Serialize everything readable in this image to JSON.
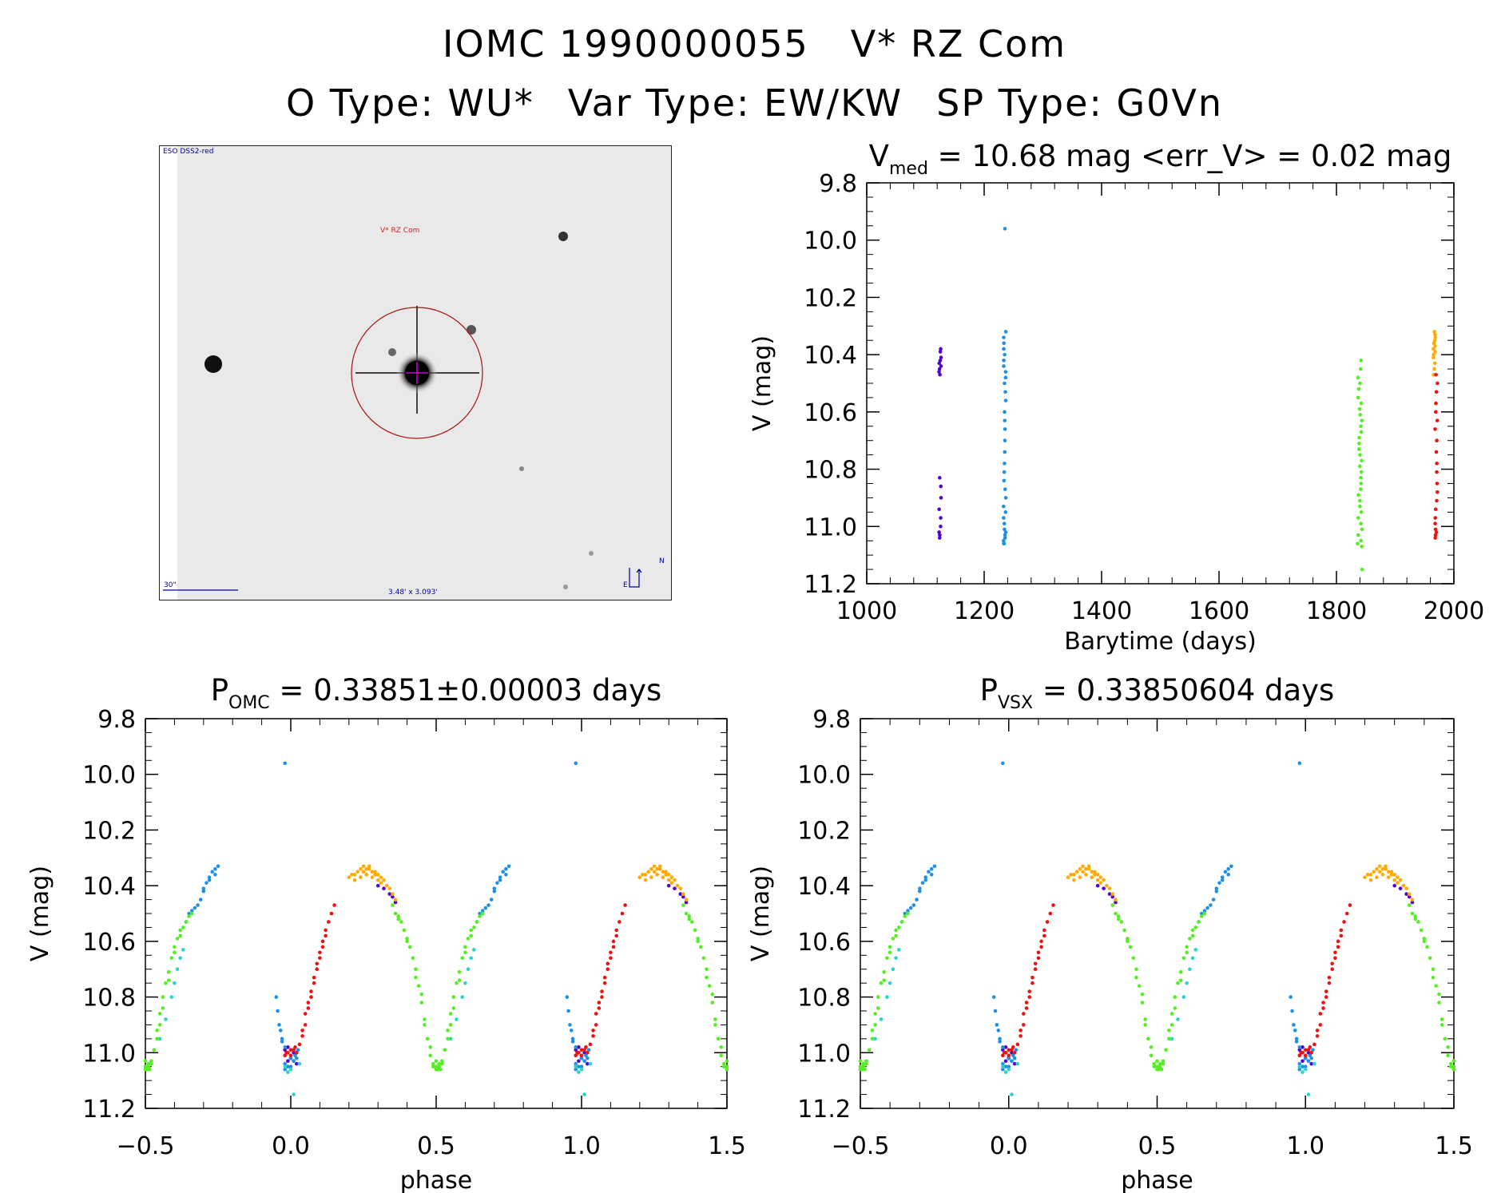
{
  "header": {
    "line1": {
      "id": "IOMC 1990000055",
      "name": "V* RZ Com"
    },
    "line2": {
      "otype": "O Type: WU*",
      "vartype": "Var Type: EW/KW",
      "sptype": "SP Type: G0Vn"
    }
  },
  "image": {
    "survey": "ESO DSS2-red",
    "target": "V* RZ Com",
    "scale": "30\"",
    "fov": "3.48' x 3.093'",
    "north": "N",
    "east": "E"
  },
  "chart_data": [
    {
      "type": "scatter",
      "title_main": "V",
      "title_sub": "med",
      "title_rest": " = 10.68 mag <err_V> = 0.02 mag",
      "xlabel": "Barytime (days)",
      "ylabel": "V (mag)",
      "xlim": [
        1000,
        2000
      ],
      "ylim": [
        9.8,
        11.2
      ],
      "y_reversed": true,
      "xticks": [
        "1000",
        "1200",
        "1400",
        "1600",
        "1800",
        "2000"
      ],
      "yticks": [
        "9.8",
        "10.0",
        "10.2",
        "10.4",
        "10.6",
        "10.8",
        "11.0",
        "11.2"
      ],
      "series": [
        {
          "color": "#5500cc",
          "x_center": 1125,
          "x_spread": 2,
          "y": [
            10.38,
            10.39,
            10.41,
            10.42,
            10.43,
            10.44,
            10.45,
            10.46,
            10.47,
            10.83,
            10.86,
            10.9,
            10.94,
            10.97,
            11.0,
            11.02,
            11.03,
            11.04
          ]
        },
        {
          "color": "#1e90e6",
          "x_center": 1235,
          "x_spread": 2,
          "y": [
            9.96,
            10.32,
            10.34,
            10.36,
            10.38,
            10.4,
            10.42,
            10.44,
            10.46,
            10.48,
            10.5,
            10.53,
            10.56,
            10.6,
            10.63,
            10.66,
            10.7,
            10.74,
            10.78,
            10.81,
            10.84,
            10.87,
            10.9,
            10.93,
            10.95,
            10.97,
            10.99,
            11.01,
            11.02,
            11.03,
            11.04,
            11.05,
            11.06,
            11.06
          ]
        },
        {
          "color": "#55ee22",
          "x_center": 1840,
          "x_spread": 4,
          "y": [
            10.42,
            10.45,
            10.48,
            10.5,
            10.52,
            10.55,
            10.57,
            10.59,
            10.61,
            10.63,
            10.65,
            10.67,
            10.69,
            10.71,
            10.73,
            10.75,
            10.77,
            10.79,
            10.81,
            10.83,
            10.85,
            10.87,
            10.89,
            10.91,
            10.93,
            10.95,
            10.97,
            10.99,
            11.01,
            11.03,
            11.05,
            11.06,
            11.07,
            11.15
          ]
        },
        {
          "color": "#ffaa00",
          "x_center": 1967,
          "x_spread": 2,
          "y": [
            10.32,
            10.33,
            10.34,
            10.35,
            10.36,
            10.37,
            10.38,
            10.39,
            10.4,
            10.41,
            10.43,
            10.45,
            10.47
          ]
        },
        {
          "color": "#ee1111",
          "x_center": 1970,
          "x_spread": 2,
          "y": [
            10.47,
            10.5,
            10.53,
            10.57,
            10.6,
            10.63,
            10.66,
            10.7,
            10.74,
            10.78,
            10.81,
            10.85,
            10.88,
            10.91,
            10.94,
            10.97,
            10.99,
            11.01,
            11.02,
            11.03,
            11.04
          ]
        }
      ]
    },
    {
      "type": "scatter",
      "title_main": "P",
      "title_sub": "OMC",
      "title_rest": " = 0.33851±0.00003 days",
      "xlabel": "phase",
      "ylabel": "V (mag)",
      "xlim": [
        -0.5,
        1.5
      ],
      "ylim": [
        9.8,
        11.2
      ],
      "y_reversed": true,
      "xticks": [
        "−0.5",
        "0.0",
        "0.5",
        "1.0",
        "1.5"
      ],
      "yticks": [
        "9.8",
        "10.0",
        "10.2",
        "10.4",
        "10.6",
        "10.8",
        "11.0",
        "11.2"
      ],
      "series": [
        {
          "color": "#5500cc",
          "x": [
            0.3,
            0.32,
            0.34,
            0.35,
            0.36,
            0.0,
            -0.01,
            0.01,
            -0.02,
            0.02,
            -0.01,
            0.0
          ],
          "y": [
            10.4,
            10.41,
            10.43,
            10.44,
            10.46,
            11.02,
            11.03,
            11.0,
            10.99,
            11.04,
            10.98,
            11.02
          ]
        },
        {
          "color": "#1e90e6",
          "x": [
            -0.05,
            -0.045,
            -0.04,
            -0.035,
            -0.03,
            -0.02,
            -0.01,
            0.0,
            0.01,
            0.015,
            0.025,
            -0.03,
            -0.02,
            -0.01,
            0.0,
            0.01,
            0.02,
            -0.02,
            0.65,
            0.66,
            0.68,
            0.69,
            0.7,
            0.71,
            0.72,
            0.73,
            0.74,
            0.75,
            0.67,
            0.7,
            0.72,
            0.74,
            0.64,
            0.66,
            0.98
          ],
          "y": [
            10.8,
            10.85,
            10.9,
            10.92,
            10.95,
            10.98,
            11.0,
            11.02,
            11.03,
            11.01,
            10.99,
            10.96,
            11.04,
            11.05,
            11.05,
            11.03,
            11.02,
            11.06,
            10.5,
            10.49,
            10.47,
            10.45,
            10.42,
            10.39,
            10.37,
            10.35,
            10.34,
            10.33,
            10.48,
            10.41,
            10.38,
            10.36,
            10.53,
            10.5,
            9.96
          ]
        },
        {
          "color": "#2ad4c8",
          "x": [
            -0.02,
            0.0,
            0.01,
            0.03,
            -0.01,
            0.55,
            0.57,
            0.59,
            0.6,
            0.61,
            0.63,
            0.62
          ],
          "y": [
            11.05,
            11.06,
            11.15,
            11.04,
            11.07,
            10.95,
            10.88,
            10.8,
            10.75,
            10.7,
            10.63,
            10.66
          ]
        },
        {
          "color": "#55ee22",
          "x": [
            0.35,
            0.36,
            0.37,
            0.38,
            0.39,
            0.4,
            0.41,
            0.42,
            0.43,
            0.44,
            0.45,
            0.46,
            0.47,
            0.48,
            0.49,
            0.5,
            0.51,
            0.52,
            0.53,
            0.54,
            0.55,
            0.56,
            0.57,
            0.58,
            0.59,
            0.6,
            0.61,
            0.62,
            0.63,
            0.64,
            0.65,
            0.66,
            0.37,
            0.4,
            0.43,
            0.46,
            0.48,
            0.5,
            0.52,
            0.54,
            0.56,
            0.58,
            0.6,
            0.62,
            0.45,
            0.55,
            0.5,
            0.51,
            0.49,
            0.505,
            0.515
          ],
          "y": [
            10.47,
            10.5,
            10.51,
            10.53,
            10.56,
            10.59,
            10.62,
            10.66,
            10.7,
            10.76,
            10.82,
            10.88,
            10.95,
            11.01,
            11.04,
            11.06,
            11.05,
            11.03,
            10.99,
            10.92,
            10.86,
            10.8,
            10.75,
            10.71,
            10.66,
            10.62,
            10.59,
            10.56,
            10.55,
            10.53,
            10.51,
            10.5,
            10.52,
            10.6,
            10.73,
            10.9,
            10.98,
            11.05,
            11.04,
            10.95,
            10.84,
            10.74,
            10.64,
            10.58,
            10.79,
            10.9,
            11.03,
            11.04,
            11.05,
            11.06,
            11.06
          ]
        },
        {
          "color": "#ffaa00",
          "x": [
            0.2,
            0.21,
            0.22,
            0.23,
            0.24,
            0.25,
            0.26,
            0.27,
            0.28,
            0.29,
            0.3,
            0.31,
            0.32,
            0.33,
            0.34,
            0.35,
            0.36,
            0.24,
            0.26,
            0.28,
            0.3,
            0.27,
            0.29,
            0.25,
            0.22,
            0.31
          ],
          "y": [
            10.37,
            10.36,
            10.36,
            10.35,
            10.34,
            10.35,
            10.34,
            10.33,
            10.35,
            10.35,
            10.36,
            10.37,
            10.38,
            10.4,
            10.41,
            10.43,
            10.45,
            10.37,
            10.36,
            10.37,
            10.38,
            10.34,
            10.36,
            10.33,
            10.38,
            10.39
          ]
        },
        {
          "color": "#ee1111",
          "x": [
            -0.01,
            0.0,
            0.01,
            0.02,
            -0.02,
            0.03,
            0.04,
            0.05,
            0.06,
            0.07,
            0.08,
            0.09,
            0.1,
            0.11,
            0.12,
            0.13,
            0.14,
            0.15,
            0.04,
            0.06,
            0.08,
            0.1,
            0.12,
            0.05,
            0.07,
            0.09,
            0.11,
            0.0,
            -0.015,
            0.015
          ],
          "y": [
            11.0,
            10.99,
            10.99,
            11.0,
            11.01,
            10.97,
            10.92,
            10.86,
            10.82,
            10.78,
            10.73,
            10.68,
            10.64,
            10.6,
            10.56,
            10.53,
            10.5,
            10.47,
            10.94,
            10.84,
            10.75,
            10.66,
            10.58,
            10.9,
            10.8,
            10.7,
            10.62,
            11.01,
            11.0,
            10.98
          ]
        }
      ]
    },
    {
      "type": "scatter",
      "title_main": "P",
      "title_sub": "VSX",
      "title_rest": " = 0.33850604 days",
      "xlabel": "phase",
      "ylabel": "V (mag)",
      "xlim": [
        -0.5,
        1.5
      ],
      "ylim": [
        9.8,
        11.2
      ],
      "y_reversed": true,
      "xticks": [
        "−0.5",
        "0.0",
        "0.5",
        "1.0",
        "1.5"
      ],
      "yticks": [
        "9.8",
        "10.0",
        "10.2",
        "10.4",
        "10.6",
        "10.8",
        "11.0",
        "11.2"
      ],
      "series": [
        {
          "color": "#5500cc",
          "x": [
            0.3,
            0.32,
            0.34,
            0.35,
            0.36,
            0.0,
            -0.01,
            0.01,
            -0.02,
            0.02,
            -0.01,
            0.0
          ],
          "y": [
            10.4,
            10.41,
            10.43,
            10.44,
            10.46,
            11.02,
            11.03,
            11.0,
            10.99,
            11.04,
            10.98,
            11.02
          ]
        },
        {
          "color": "#1e90e6",
          "x": [
            -0.05,
            -0.045,
            -0.04,
            -0.035,
            -0.03,
            -0.02,
            -0.01,
            0.0,
            0.01,
            0.015,
            0.025,
            -0.03,
            -0.02,
            -0.01,
            0.0,
            0.01,
            0.02,
            -0.02,
            0.65,
            0.66,
            0.68,
            0.69,
            0.7,
            0.71,
            0.72,
            0.73,
            0.74,
            0.75,
            0.67,
            0.7,
            0.72,
            0.74,
            0.64,
            0.66,
            0.98
          ],
          "y": [
            10.8,
            10.85,
            10.9,
            10.92,
            10.95,
            10.98,
            11.0,
            11.02,
            11.03,
            11.01,
            10.99,
            10.96,
            11.04,
            11.05,
            11.05,
            11.03,
            11.02,
            11.06,
            10.5,
            10.49,
            10.47,
            10.45,
            10.42,
            10.39,
            10.37,
            10.35,
            10.34,
            10.33,
            10.48,
            10.41,
            10.38,
            10.36,
            10.53,
            10.5,
            9.96
          ]
        },
        {
          "color": "#2ad4c8",
          "x": [
            -0.02,
            0.0,
            0.01,
            0.03,
            -0.01,
            0.55,
            0.57,
            0.59,
            0.6,
            0.61,
            0.63,
            0.62
          ],
          "y": [
            11.05,
            11.06,
            11.15,
            11.04,
            11.07,
            10.95,
            10.88,
            10.8,
            10.75,
            10.7,
            10.63,
            10.66
          ]
        },
        {
          "color": "#55ee22",
          "x": [
            0.35,
            0.36,
            0.37,
            0.38,
            0.39,
            0.4,
            0.41,
            0.42,
            0.43,
            0.44,
            0.45,
            0.46,
            0.47,
            0.48,
            0.49,
            0.5,
            0.51,
            0.52,
            0.53,
            0.54,
            0.55,
            0.56,
            0.57,
            0.58,
            0.59,
            0.6,
            0.61,
            0.62,
            0.63,
            0.64,
            0.65,
            0.66,
            0.37,
            0.4,
            0.43,
            0.46,
            0.48,
            0.5,
            0.52,
            0.54,
            0.56,
            0.58,
            0.6,
            0.62,
            0.45,
            0.55,
            0.5,
            0.51,
            0.49,
            0.505,
            0.515
          ],
          "y": [
            10.47,
            10.5,
            10.51,
            10.53,
            10.56,
            10.59,
            10.62,
            10.66,
            10.7,
            10.76,
            10.82,
            10.88,
            10.95,
            11.01,
            11.04,
            11.06,
            11.05,
            11.03,
            10.99,
            10.92,
            10.86,
            10.8,
            10.75,
            10.71,
            10.66,
            10.62,
            10.59,
            10.56,
            10.55,
            10.53,
            10.51,
            10.5,
            10.52,
            10.6,
            10.73,
            10.9,
            10.98,
            11.05,
            11.04,
            10.95,
            10.84,
            10.74,
            10.64,
            10.58,
            10.79,
            10.9,
            11.03,
            11.04,
            11.05,
            11.06,
            11.06
          ]
        },
        {
          "color": "#ffaa00",
          "x": [
            0.2,
            0.21,
            0.22,
            0.23,
            0.24,
            0.25,
            0.26,
            0.27,
            0.28,
            0.29,
            0.3,
            0.31,
            0.32,
            0.33,
            0.34,
            0.35,
            0.36,
            0.24,
            0.26,
            0.28,
            0.3,
            0.27,
            0.29,
            0.25,
            0.22,
            0.31
          ],
          "y": [
            10.37,
            10.36,
            10.36,
            10.35,
            10.34,
            10.35,
            10.34,
            10.33,
            10.35,
            10.35,
            10.36,
            10.37,
            10.38,
            10.4,
            10.41,
            10.43,
            10.45,
            10.37,
            10.36,
            10.37,
            10.38,
            10.34,
            10.36,
            10.33,
            10.38,
            10.39
          ]
        },
        {
          "color": "#ee1111",
          "x": [
            -0.01,
            0.0,
            0.01,
            0.02,
            -0.02,
            0.03,
            0.04,
            0.05,
            0.06,
            0.07,
            0.08,
            0.09,
            0.1,
            0.11,
            0.12,
            0.13,
            0.14,
            0.15,
            0.04,
            0.06,
            0.08,
            0.1,
            0.12,
            0.05,
            0.07,
            0.09,
            0.11,
            0.0,
            -0.015,
            0.015
          ],
          "y": [
            11.0,
            10.99,
            10.99,
            11.0,
            11.01,
            10.97,
            10.92,
            10.86,
            10.82,
            10.78,
            10.73,
            10.68,
            10.64,
            10.6,
            10.56,
            10.53,
            10.5,
            10.47,
            10.94,
            10.84,
            10.75,
            10.66,
            10.58,
            10.9,
            10.8,
            10.7,
            10.62,
            11.01,
            11.0,
            10.98
          ]
        }
      ]
    }
  ]
}
